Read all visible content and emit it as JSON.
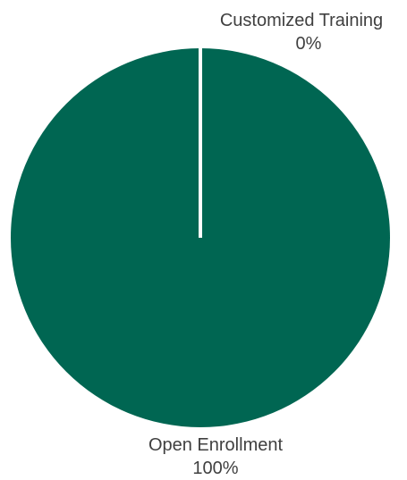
{
  "chart_data": {
    "type": "pie",
    "slices": [
      {
        "label": "Customized Training",
        "value": 0,
        "value_label": "0%",
        "color": "#006652"
      },
      {
        "label": "Open Enrollment",
        "value": 100,
        "value_label": "100%",
        "color": "#006652"
      }
    ],
    "slice_border_color": "#ffffff",
    "legend": "none",
    "data_labels": "outside"
  }
}
